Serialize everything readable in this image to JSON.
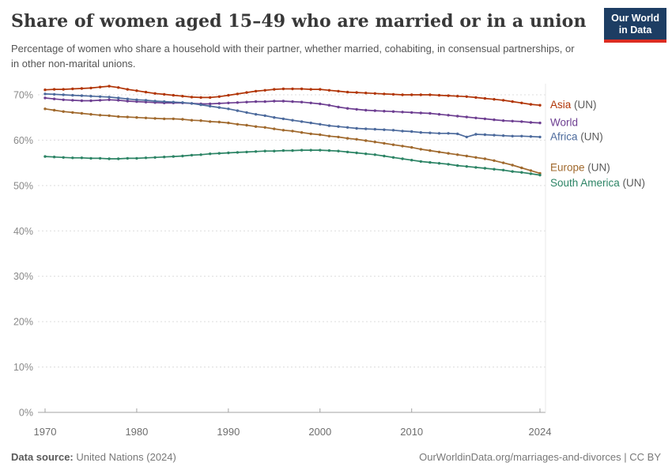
{
  "logo": {
    "line1": "Our World",
    "line2": "in Data"
  },
  "footer": {
    "source_label": "Data source:",
    "source_value": "United Nations (2024)",
    "credit": "OurWorldinData.org/marriages-and-divorces | CC BY"
  },
  "chart_data": {
    "type": "line",
    "title": "Share of women aged 15–49 who are married or in a union",
    "subtitle": "Percentage of women who share a household with their partner, whether married, cohabiting, in consensual partnerships, or in other non-marital unions.",
    "xlabel": "",
    "ylabel": "",
    "unit": "%",
    "grid": "horizontal-dashed",
    "legend_position": "right-of-line-ends",
    "xlim": [
      1970,
      2024
    ],
    "ylim": [
      0,
      70
    ],
    "y_ticks": [
      0,
      10,
      20,
      30,
      40,
      50,
      60,
      70
    ],
    "x_ticks": [
      1970,
      1980,
      1990,
      2000,
      2010,
      2024
    ],
    "years_start": 1970,
    "years_end": 2024,
    "series": [
      {
        "name": "Asia",
        "suffix": " (UN)",
        "color": "#b13507",
        "values": [
          71.1,
          71.2,
          71.2,
          71.3,
          71.4,
          71.5,
          71.7,
          71.9,
          71.6,
          71.2,
          70.9,
          70.6,
          70.3,
          70.1,
          69.9,
          69.7,
          69.5,
          69.4,
          69.4,
          69.6,
          69.9,
          70.2,
          70.5,
          70.8,
          71.0,
          71.2,
          71.3,
          71.3,
          71.3,
          71.2,
          71.2,
          71.0,
          70.8,
          70.6,
          70.5,
          70.4,
          70.3,
          70.2,
          70.1,
          70.0,
          70.0,
          70.0,
          70.0,
          69.9,
          69.8,
          69.7,
          69.6,
          69.4,
          69.2,
          69.0,
          68.8,
          68.5,
          68.2,
          67.9,
          67.7
        ]
      },
      {
        "name": "World",
        "suffix": "",
        "color": "#6d3e91",
        "values": [
          69.3,
          69.1,
          68.9,
          68.8,
          68.7,
          68.7,
          68.8,
          68.9,
          68.8,
          68.6,
          68.5,
          68.4,
          68.3,
          68.2,
          68.2,
          68.2,
          68.1,
          68.0,
          68.0,
          68.1,
          68.2,
          68.3,
          68.4,
          68.5,
          68.5,
          68.6,
          68.6,
          68.5,
          68.4,
          68.2,
          68.0,
          67.7,
          67.3,
          67.0,
          66.8,
          66.6,
          66.5,
          66.4,
          66.3,
          66.2,
          66.1,
          66.0,
          65.9,
          65.7,
          65.5,
          65.3,
          65.1,
          64.9,
          64.7,
          64.5,
          64.3,
          64.2,
          64.1,
          63.9,
          63.8
        ]
      },
      {
        "name": "Africa",
        "suffix": " (UN)",
        "color": "#4c6a9c",
        "values": [
          70.2,
          70.1,
          70.0,
          69.9,
          69.8,
          69.7,
          69.6,
          69.5,
          69.3,
          69.1,
          68.9,
          68.8,
          68.6,
          68.5,
          68.4,
          68.3,
          68.1,
          67.8,
          67.5,
          67.2,
          66.9,
          66.5,
          66.1,
          65.7,
          65.4,
          65.0,
          64.7,
          64.4,
          64.1,
          63.8,
          63.5,
          63.2,
          63.0,
          62.8,
          62.6,
          62.5,
          62.4,
          62.3,
          62.2,
          62.0,
          61.9,
          61.7,
          61.6,
          61.5,
          61.5,
          61.4,
          60.7,
          61.3,
          61.2,
          61.1,
          61.0,
          60.9,
          60.9,
          60.8,
          60.7
        ]
      },
      {
        "name": "Europe",
        "suffix": " (UN)",
        "color": "#a0692d",
        "values": [
          66.9,
          66.6,
          66.3,
          66.1,
          65.9,
          65.7,
          65.5,
          65.4,
          65.2,
          65.1,
          65.0,
          64.9,
          64.8,
          64.7,
          64.7,
          64.6,
          64.4,
          64.3,
          64.1,
          64.0,
          63.8,
          63.5,
          63.3,
          63.0,
          62.8,
          62.5,
          62.2,
          62.0,
          61.7,
          61.4,
          61.2,
          60.9,
          60.7,
          60.4,
          60.2,
          59.9,
          59.6,
          59.3,
          59.0,
          58.7,
          58.4,
          58.0,
          57.7,
          57.4,
          57.1,
          56.8,
          56.5,
          56.2,
          55.9,
          55.5,
          55.0,
          54.5,
          53.9,
          53.3,
          52.7
        ]
      },
      {
        "name": "South America",
        "suffix": " (UN)",
        "color": "#2c8465",
        "values": [
          56.4,
          56.3,
          56.2,
          56.1,
          56.1,
          56.0,
          56.0,
          55.9,
          55.9,
          56.0,
          56.0,
          56.1,
          56.2,
          56.3,
          56.4,
          56.5,
          56.7,
          56.8,
          57.0,
          57.1,
          57.2,
          57.3,
          57.4,
          57.5,
          57.6,
          57.6,
          57.7,
          57.7,
          57.8,
          57.8,
          57.8,
          57.7,
          57.6,
          57.4,
          57.2,
          57.0,
          56.8,
          56.5,
          56.2,
          55.9,
          55.6,
          55.3,
          55.1,
          54.9,
          54.7,
          54.4,
          54.2,
          54.0,
          53.8,
          53.6,
          53.4,
          53.1,
          52.9,
          52.6,
          52.3
        ]
      }
    ]
  }
}
